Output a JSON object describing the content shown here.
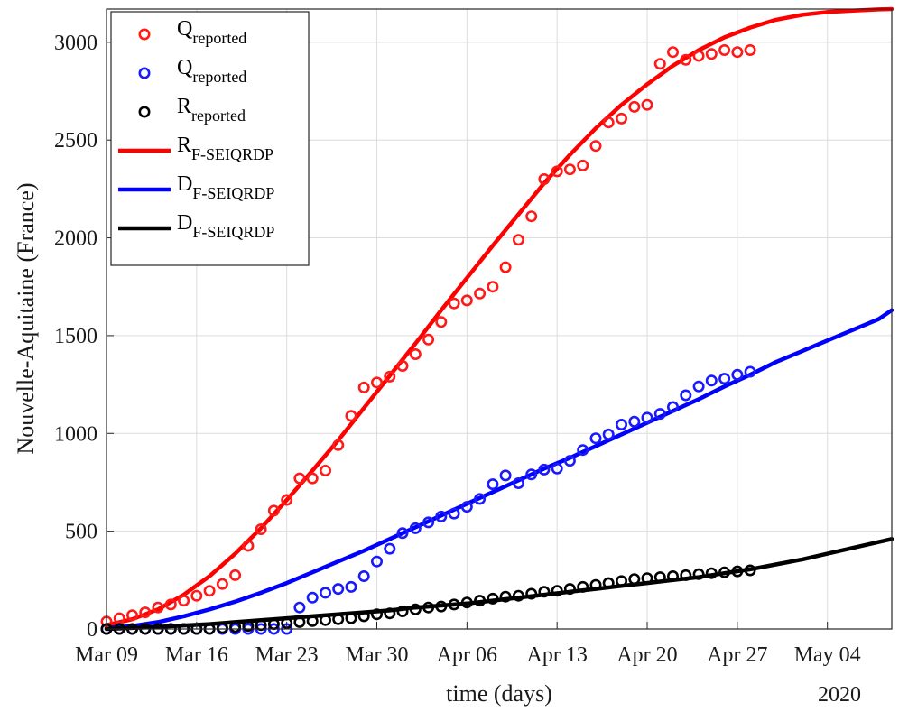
{
  "chart_data": {
    "type": "line",
    "title": "",
    "xlabel": "time (days)",
    "ylabel": "Nouvelle-Aquitaine (France)",
    "year_label": "2020",
    "x_unit": "days since Mar 09, 2020",
    "xlim": [
      0,
      61
    ],
    "ylim": [
      0,
      3170
    ],
    "grid": true,
    "legend_position": "top-left",
    "x_ticks": [
      {
        "value": 0,
        "label": "Mar 09"
      },
      {
        "value": 7,
        "label": "Mar 16"
      },
      {
        "value": 14,
        "label": "Mar 23"
      },
      {
        "value": 21,
        "label": "Mar 30"
      },
      {
        "value": 28,
        "label": "Apr 06"
      },
      {
        "value": 35,
        "label": "Apr 13"
      },
      {
        "value": 42,
        "label": "Apr 20"
      },
      {
        "value": 49,
        "label": "Apr 27"
      },
      {
        "value": 56,
        "label": "May 04"
      }
    ],
    "y_ticks": [
      0,
      500,
      1000,
      1500,
      2000,
      2500,
      3000
    ],
    "series": [
      {
        "kind": "scatter",
        "legend_main": "Q",
        "legend_sub": "reported",
        "color": "#ff1a1a",
        "x": [
          0,
          1,
          2,
          3,
          4,
          5,
          6,
          7,
          8,
          9,
          10,
          11,
          12,
          13,
          14,
          15,
          16,
          17,
          18,
          19,
          20,
          21,
          22,
          23,
          24,
          25,
          26,
          27,
          28,
          29,
          30,
          31,
          32,
          33,
          34,
          35,
          36,
          37,
          38,
          39,
          40,
          41,
          42,
          43,
          44,
          45,
          46,
          47,
          48,
          49,
          50
        ],
        "y": [
          38,
          55,
          70,
          85,
          110,
          125,
          145,
          170,
          195,
          230,
          275,
          425,
          510,
          605,
          660,
          770,
          770,
          810,
          940,
          1090,
          1235,
          1260,
          1290,
          1345,
          1405,
          1480,
          1570,
          1665,
          1680,
          1715,
          1750,
          1850,
          1990,
          2110,
          2300,
          2340,
          2350,
          2370,
          2470,
          2590,
          2610,
          2670,
          2680,
          2890,
          2950,
          2910,
          2930,
          2940,
          2960,
          2950,
          2960
        ]
      },
      {
        "kind": "scatter",
        "legend_main": "Q",
        "legend_sub": "reported",
        "color": "#1a1aff",
        "x": [
          0,
          1,
          2,
          3,
          4,
          5,
          6,
          7,
          8,
          9,
          10,
          11,
          12,
          13,
          14,
          15,
          16,
          17,
          18,
          19,
          20,
          21,
          22,
          23,
          24,
          25,
          26,
          27,
          28,
          29,
          30,
          31,
          32,
          33,
          34,
          35,
          36,
          37,
          38,
          39,
          40,
          41,
          42,
          43,
          44,
          45,
          46,
          47,
          48,
          49,
          50
        ],
        "y": [
          0,
          0,
          0,
          0,
          0,
          0,
          0,
          0,
          0,
          0,
          0,
          0,
          0,
          0,
          0,
          110,
          160,
          185,
          205,
          215,
          270,
          345,
          410,
          490,
          515,
          545,
          575,
          590,
          625,
          665,
          740,
          785,
          745,
          790,
          815,
          820,
          860,
          915,
          975,
          995,
          1045,
          1060,
          1080,
          1100,
          1135,
          1195,
          1240,
          1270,
          1280,
          1300,
          1315
        ]
      },
      {
        "kind": "scatter",
        "legend_main": "R",
        "legend_sub": "reported",
        "color": "#000000",
        "x": [
          0,
          1,
          2,
          3,
          4,
          5,
          6,
          7,
          8,
          9,
          10,
          11,
          12,
          13,
          14,
          15,
          16,
          17,
          18,
          19,
          20,
          21,
          22,
          23,
          24,
          25,
          26,
          27,
          28,
          29,
          30,
          31,
          32,
          33,
          34,
          35,
          36,
          37,
          38,
          39,
          40,
          41,
          42,
          43,
          44,
          45,
          46,
          47,
          48,
          49,
          50
        ],
        "y": [
          0,
          0,
          0,
          0,
          0,
          0,
          0,
          0,
          0,
          5,
          10,
          15,
          20,
          25,
          30,
          35,
          40,
          45,
          50,
          55,
          65,
          75,
          80,
          90,
          100,
          110,
          115,
          125,
          135,
          145,
          155,
          165,
          170,
          180,
          190,
          195,
          205,
          215,
          225,
          235,
          245,
          255,
          260,
          265,
          270,
          275,
          280,
          285,
          290,
          295,
          300
        ]
      },
      {
        "kind": "line",
        "legend_main": "R",
        "legend_sub": "F-SEIQRDP",
        "color": "#ff0000",
        "x": [
          0,
          2,
          4,
          6,
          8,
          10,
          12,
          14,
          16,
          18,
          20,
          22,
          24,
          26,
          28,
          30,
          32,
          34,
          36,
          38,
          40,
          42,
          44,
          46,
          48,
          50,
          52,
          54,
          56,
          58,
          60,
          61
        ],
        "y": [
          20,
          50,
          100,
          175,
          270,
          385,
          515,
          660,
          810,
          965,
          1130,
          1295,
          1460,
          1630,
          1795,
          1960,
          2120,
          2280,
          2425,
          2560,
          2680,
          2785,
          2880,
          2960,
          3025,
          3075,
          3115,
          3140,
          3155,
          3162,
          3168,
          3170
        ]
      },
      {
        "kind": "line",
        "legend_main": "D",
        "legend_sub": "F-SEIQRDP",
        "color": "#0000ff",
        "x": [
          0,
          2,
          4,
          6,
          8,
          10,
          12,
          14,
          16,
          18,
          20,
          22,
          24,
          26,
          28,
          30,
          32,
          34,
          36,
          38,
          40,
          42,
          44,
          46,
          48,
          50,
          52,
          54,
          56,
          58,
          60,
          61
        ],
        "y": [
          5,
          15,
          35,
          65,
          100,
          140,
          185,
          235,
          290,
          345,
          400,
          460,
          520,
          580,
          640,
          700,
          760,
          820,
          875,
          935,
          995,
          1055,
          1115,
          1175,
          1240,
          1300,
          1365,
          1420,
          1475,
          1530,
          1585,
          1630
        ]
      },
      {
        "kind": "line",
        "legend_main": "D",
        "legend_sub": "F-SEIQRDP",
        "color": "#000000",
        "x": [
          0,
          2,
          4,
          6,
          8,
          10,
          12,
          14,
          16,
          18,
          20,
          22,
          24,
          26,
          28,
          30,
          32,
          34,
          36,
          38,
          40,
          42,
          44,
          46,
          48,
          50,
          52,
          54,
          56,
          58,
          60,
          61
        ],
        "y": [
          0,
          5,
          10,
          18,
          25,
          35,
          45,
          55,
          65,
          75,
          85,
          95,
          110,
          120,
          130,
          145,
          160,
          175,
          190,
          205,
          220,
          235,
          250,
          265,
          285,
          305,
          330,
          355,
          385,
          415,
          445,
          460
        ]
      }
    ]
  }
}
